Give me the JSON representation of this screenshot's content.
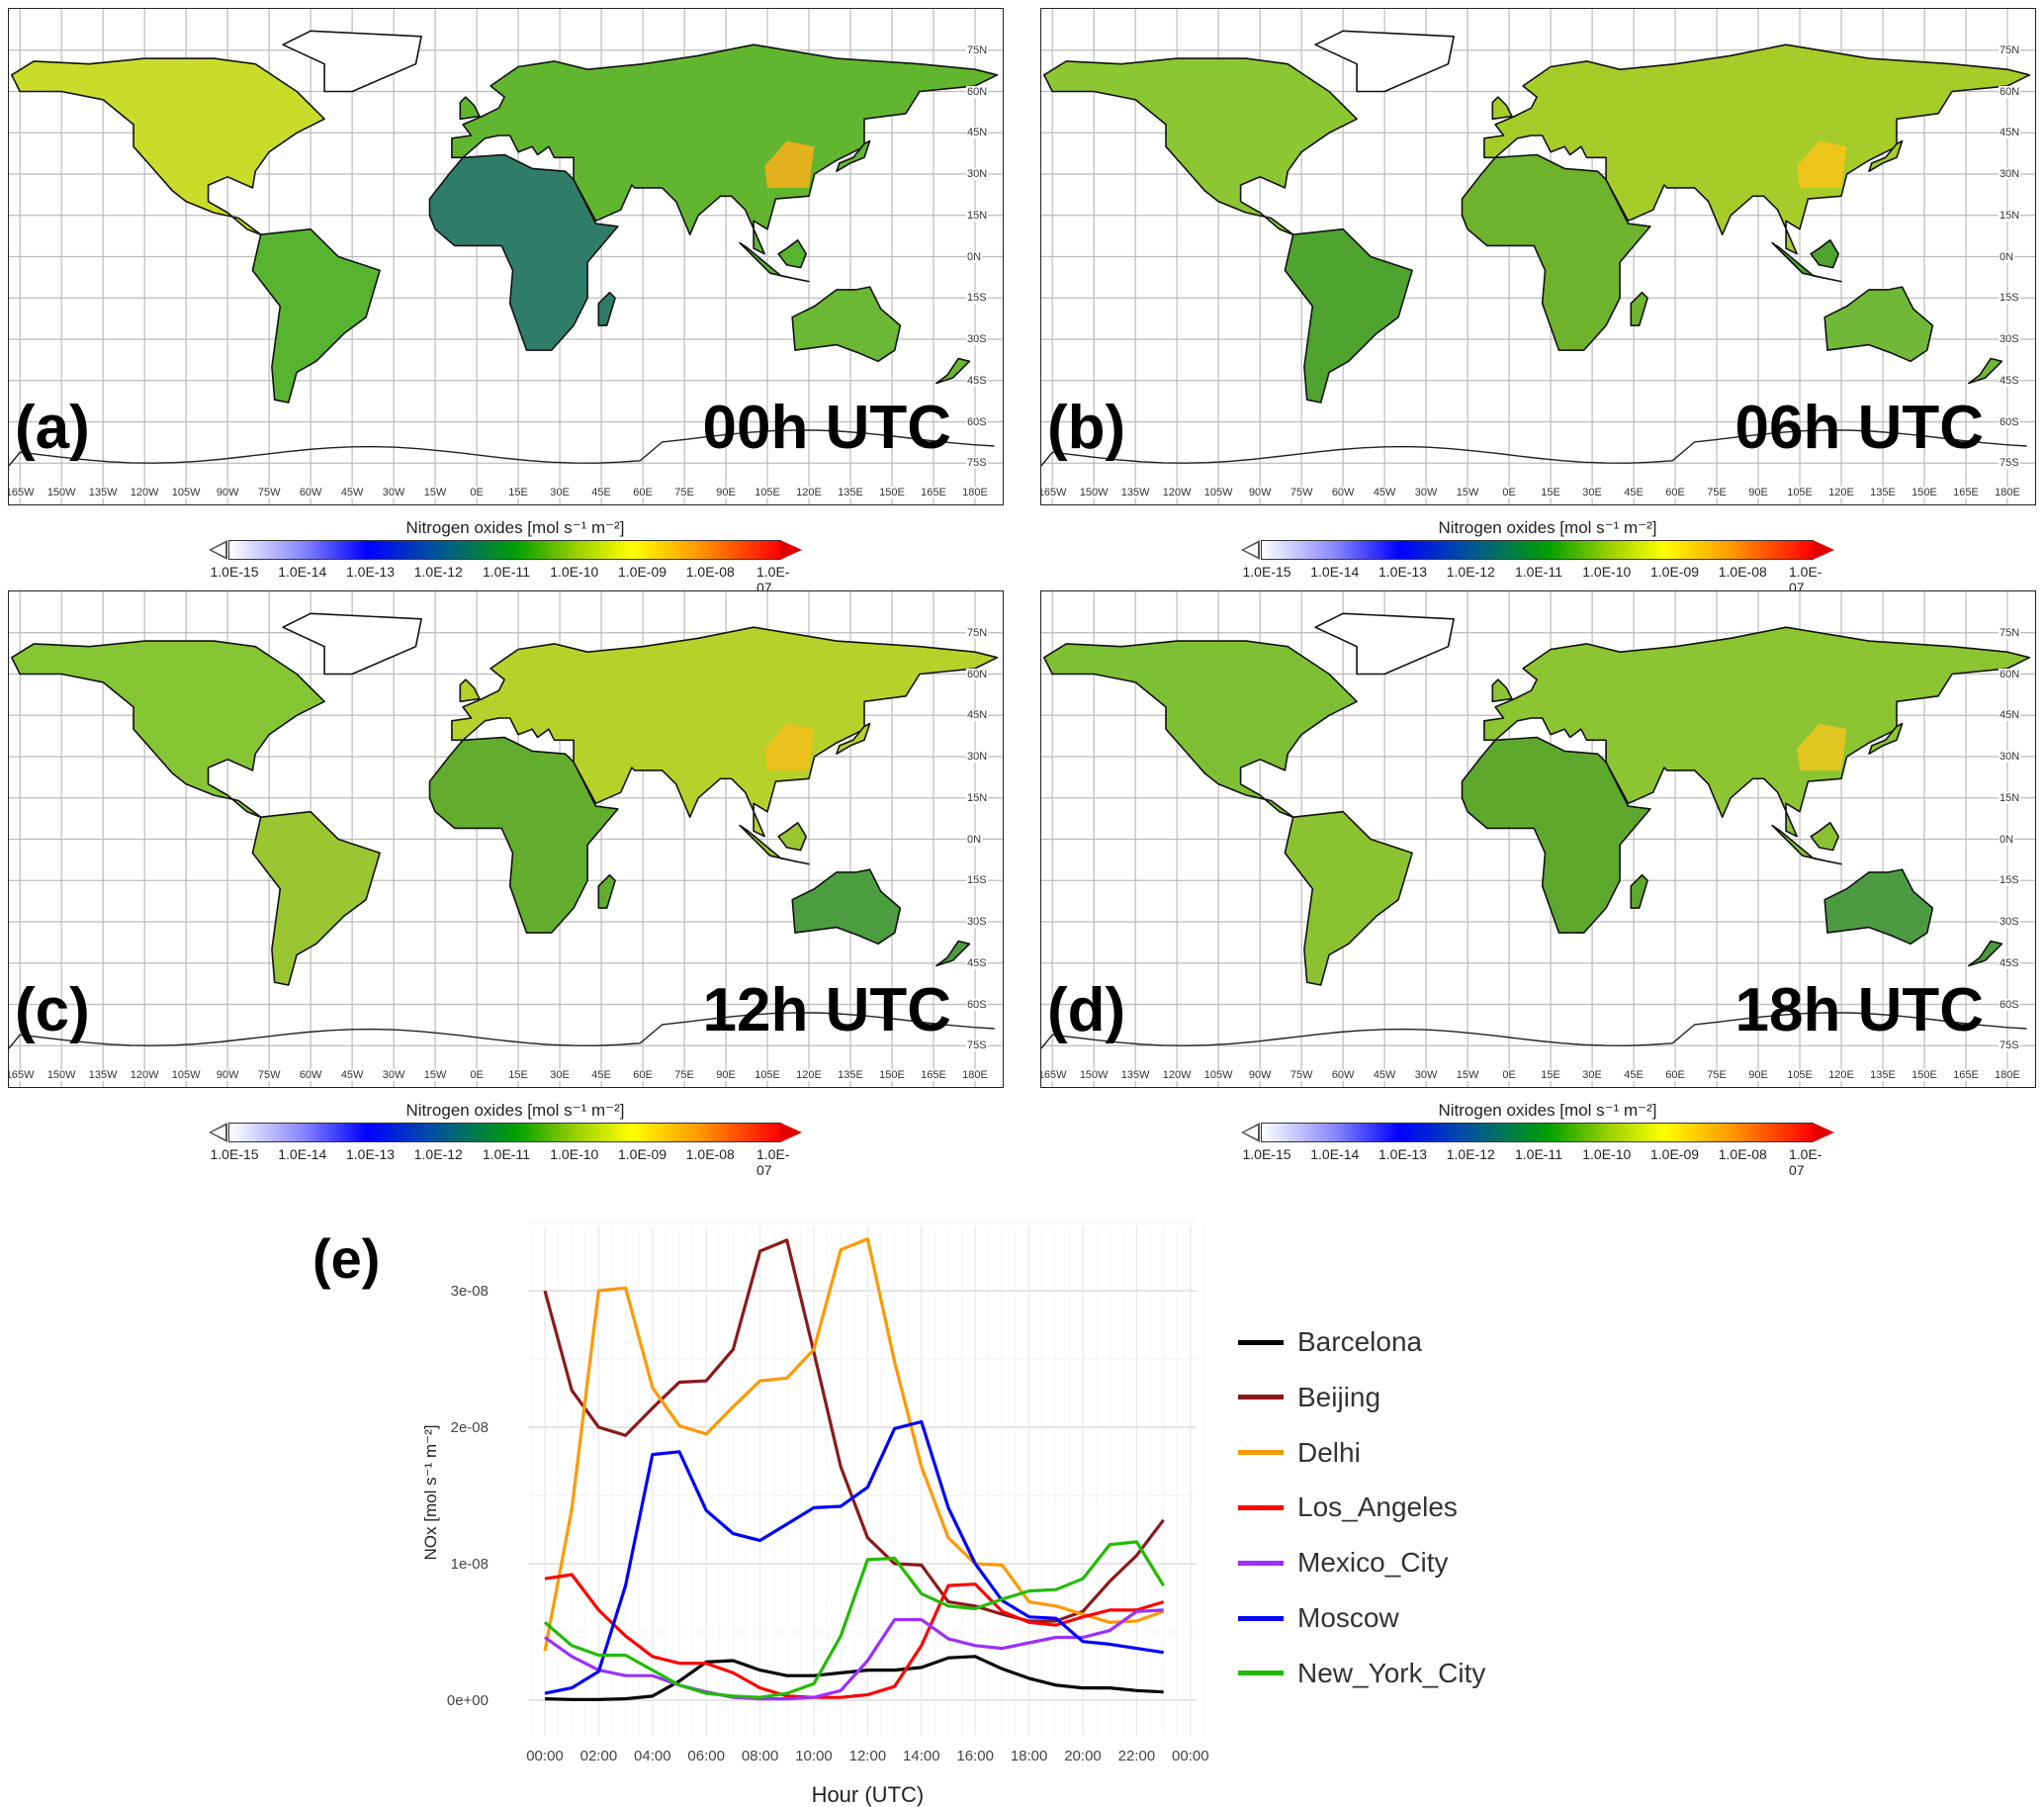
{
  "panels": [
    {
      "label": "(a)",
      "time": "00h UTC",
      "fills": {
        "na": "#c9dc2a",
        "sa": "#57b330",
        "africa": "#2f7d68",
        "eurasia": "#62b52e",
        "australia": "#6ab834",
        "greenland": "#ffffff",
        "asia_hot": "#f2b01c"
      }
    },
    {
      "label": "(b)",
      "time": "06h UTC",
      "fills": {
        "na": "#8cc632",
        "sa": "#4ea42e",
        "africa": "#6fb22c",
        "eurasia": "#a6cc2a",
        "australia": "#72b838",
        "greenland": "#ffffff",
        "asia_hot": "#f6c418"
      }
    },
    {
      "label": "(c)",
      "time": "12h UTC",
      "fills": {
        "na": "#86c534",
        "sa": "#9ac632",
        "africa": "#62ac2e",
        "eurasia": "#b6d22a",
        "australia": "#4c9c40",
        "greenland": "#ffffff",
        "asia_hot": "#f2c01c"
      }
    },
    {
      "label": "(d)",
      "time": "18h UTC",
      "fills": {
        "na": "#7ec034",
        "sa": "#8cc232",
        "africa": "#5ea82e",
        "eurasia": "#8cc432",
        "australia": "#4c9a42",
        "greenland": "#ffffff",
        "asia_hot": "#e8c81e"
      }
    }
  ],
  "lat_labels": [
    "75N",
    "60N",
    "45N",
    "30N",
    "15N",
    "0N",
    "15S",
    "30S",
    "45S",
    "60S",
    "75S"
  ],
  "lon_labels": [
    "165W",
    "150W",
    "135W",
    "120W",
    "105W",
    "90W",
    "75W",
    "60W",
    "45W",
    "30W",
    "15W",
    "0E",
    "15E",
    "30E",
    "45E",
    "60E",
    "75E",
    "90E",
    "105E",
    "120E",
    "135E",
    "150E",
    "165E",
    "180E"
  ],
  "colorbar": {
    "title": "Nitrogen oxides [mol s⁻¹ m⁻²]",
    "ticks": [
      "1.0E-15",
      "1.0E-14",
      "1.0E-13",
      "1.0E-12",
      "1.0E-11",
      "1.0E-10",
      "1.0E-09",
      "1.0E-08",
      "1.0E-07"
    ]
  },
  "chart_data": {
    "type": "line",
    "panel_label": "(e)",
    "xlabel": "Hour (UTC)",
    "ylabel": "NOx [mol s⁻¹ m⁻²]",
    "x": [
      0,
      1,
      2,
      3,
      4,
      5,
      6,
      7,
      8,
      9,
      10,
      11,
      12,
      13,
      14,
      15,
      16,
      17,
      18,
      19,
      20,
      21,
      22,
      23
    ],
    "x_ticks": [
      "00:00",
      "02:00",
      "04:00",
      "06:00",
      "08:00",
      "10:00",
      "12:00",
      "14:00",
      "16:00",
      "18:00",
      "20:00",
      "22:00",
      "00:00"
    ],
    "y_ticks": [
      "0e+00",
      "1e-08",
      "2e-08",
      "3e-08"
    ],
    "ylim": [
      0,
      3.4e-08
    ],
    "grid": true,
    "legend_position": "right",
    "series": [
      {
        "name": "Barcelona",
        "color": "#000000",
        "values": [
          1e-10,
          5e-11,
          5e-11,
          1e-10,
          3e-10,
          1.4e-09,
          2.8e-09,
          2.9e-09,
          2.2e-09,
          1.8e-09,
          1.8e-09,
          2e-09,
          2.2e-09,
          2.2e-09,
          2.4e-09,
          3.1e-09,
          3.2e-09,
          2.3e-09,
          1.6e-09,
          1.1e-09,
          9e-10,
          9e-10,
          7e-10,
          6e-10
        ]
      },
      {
        "name": "Beijing",
        "color": "#8b1a1a",
        "values": [
          3e-08,
          2.27e-08,
          2e-08,
          1.94e-08,
          2.14e-08,
          2.33e-08,
          2.34e-08,
          2.57e-08,
          3.29e-08,
          3.37e-08,
          2.55e-08,
          1.71e-08,
          1.19e-08,
          1e-08,
          9.9e-09,
          7.2e-09,
          6.9e-09,
          6.3e-09,
          5.8e-09,
          5.8e-09,
          6.5e-09,
          8.7e-09,
          1.06e-08,
          1.32e-08
        ]
      },
      {
        "name": "Delhi",
        "color": "#ff9900",
        "values": [
          3.6e-09,
          1.4e-08,
          3e-08,
          3.02e-08,
          2.29e-08,
          2.01e-08,
          1.95e-08,
          2.15e-08,
          2.34e-08,
          2.36e-08,
          2.57e-08,
          3.3e-08,
          3.38e-08,
          2.48e-08,
          1.71e-08,
          1.19e-08,
          1e-08,
          9.9e-09,
          7.2e-09,
          6.9e-09,
          6.3e-09,
          5.7e-09,
          5.8e-09,
          6.5e-09
        ]
      },
      {
        "name": "Los_Angeles",
        "color": "#ff0000",
        "values": [
          8.9e-09,
          9.2e-09,
          6.6e-09,
          4.7e-09,
          3.2e-09,
          2.7e-09,
          2.7e-09,
          2e-09,
          9e-10,
          3e-10,
          2e-10,
          2e-10,
          4e-10,
          1e-09,
          4e-09,
          8.4e-09,
          8.5e-09,
          6.5e-09,
          5.7e-09,
          5.5e-09,
          6.1e-09,
          6.6e-09,
          6.6e-09,
          7.2e-09
        ]
      },
      {
        "name": "Mexico_City",
        "color": "#9b30ff",
        "values": [
          4.6e-09,
          3.2e-09,
          2.2e-09,
          1.8e-09,
          1.8e-09,
          1.1e-09,
          6e-10,
          2e-10,
          1e-10,
          1e-10,
          2e-10,
          7e-10,
          2.9e-09,
          5.9e-09,
          5.9e-09,
          4.5e-09,
          4e-09,
          3.8e-09,
          4.2e-09,
          4.6e-09,
          4.6e-09,
          5.1e-09,
          6.5e-09,
          6.6e-09
        ]
      },
      {
        "name": "Moscow",
        "color": "#0000ff",
        "values": [
          5e-10,
          9e-10,
          2.1e-09,
          8.4e-09,
          1.8e-08,
          1.82e-08,
          1.39e-08,
          1.22e-08,
          1.17e-08,
          1.29e-08,
          1.41e-08,
          1.42e-08,
          1.56e-08,
          1.99e-08,
          2.04e-08,
          1.41e-08,
          1e-08,
          7.3e-09,
          6.1e-09,
          6e-09,
          4.3e-09,
          4.1e-09,
          3.8e-09,
          3.5e-09
        ]
      },
      {
        "name": "New_York_City",
        "color": "#22bb00",
        "values": [
          5.7e-09,
          4e-09,
          3.3e-09,
          3.3e-09,
          2.2e-09,
          1.1e-09,
          5e-10,
          3e-10,
          2e-10,
          5e-10,
          1.2e-09,
          4.7e-09,
          1.03e-08,
          1.04e-08,
          7.8e-09,
          6.9e-09,
          6.7e-09,
          7.4e-09,
          8e-09,
          8.1e-09,
          8.9e-09,
          1.14e-08,
          1.16e-08,
          8.4e-09
        ]
      }
    ]
  }
}
